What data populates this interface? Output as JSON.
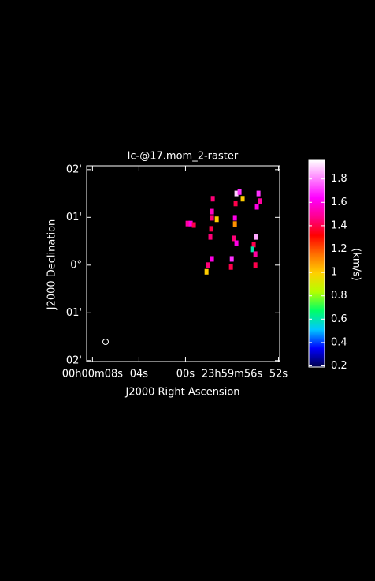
{
  "chart_data": {
    "type": "raster",
    "title": "lc-@17.mom_2-raster",
    "x_label": "J2000 Right Ascension",
    "y_label": "J2000 Declination",
    "xlim": [
      8.5,
      -8.1
    ],
    "xticks": [
      {
        "value": 8,
        "label": "00h00m08s"
      },
      {
        "value": 4,
        "label": "04s"
      },
      {
        "value": 0,
        "label": "00s"
      },
      {
        "value": -4,
        "label": "23h59m56s"
      },
      {
        "value": -8,
        "label": "52s"
      }
    ],
    "ylim": [
      -2.02,
      2.08
    ],
    "yticks": [
      {
        "value": 2,
        "label": "02'"
      },
      {
        "value": 1,
        "label": "01'"
      },
      {
        "value": 0,
        "label": "0°"
      },
      {
        "value": -1,
        "label": "01'"
      },
      {
        "value": -2,
        "label": "02'"
      }
    ],
    "x": [
      -0.18,
      -0.45,
      -0.72,
      -2.35,
      -2.28,
      -2.28,
      -2.21,
      -2.14,
      -2.69,
      -4.38,
      -4.65,
      -4.92,
      -4.31,
      -4.25,
      -4.25,
      -4.18,
      -4.38,
      -6.28,
      -6.42,
      -6.14,
      -6.08,
      -5.87,
      -5.74,
      -6.01,
      -6.01,
      -2.28,
      -1.94,
      -1.81,
      -3.98,
      -3.91
    ],
    "y": [
      0.87,
      0.87,
      0.84,
      1.39,
      1.12,
      0.99,
      0.76,
      0.59,
      0.96,
      1.5,
      1.53,
      1.39,
      1.29,
      0.99,
      0.86,
      0.56,
      0.46,
      1.5,
      1.34,
      1.22,
      0.59,
      0.43,
      0.33,
      0.23,
      0.0,
      0.13,
      0.0,
      -0.14,
      0.13,
      -0.04
    ],
    "values": [
      1.5,
      1.6,
      1.4,
      1.45,
      1.55,
      1.45,
      1.4,
      1.45,
      1.0,
      1.9,
      1.7,
      1.0,
      1.4,
      1.6,
      1.1,
      1.45,
      1.6,
      1.7,
      1.5,
      1.6,
      1.85,
      1.4,
      0.6,
      1.5,
      1.4,
      1.6,
      1.45,
      1.0,
      1.7,
      1.4
    ],
    "clim": [
      0.19,
      1.96
    ],
    "cticks": [
      0.2,
      0.4,
      0.6,
      0.8,
      1,
      1.2,
      1.4,
      1.6,
      1.8
    ],
    "colorbar_label": "(km/s)",
    "colormap": [
      "#00004a",
      "#0000ff",
      "#00c8ff",
      "#00ff66",
      "#b4ff00",
      "#ffd000",
      "#ff7000",
      "#ff0000",
      "#ff0090",
      "#ff00ff",
      "#ff80ff",
      "#ffffff"
    ]
  }
}
